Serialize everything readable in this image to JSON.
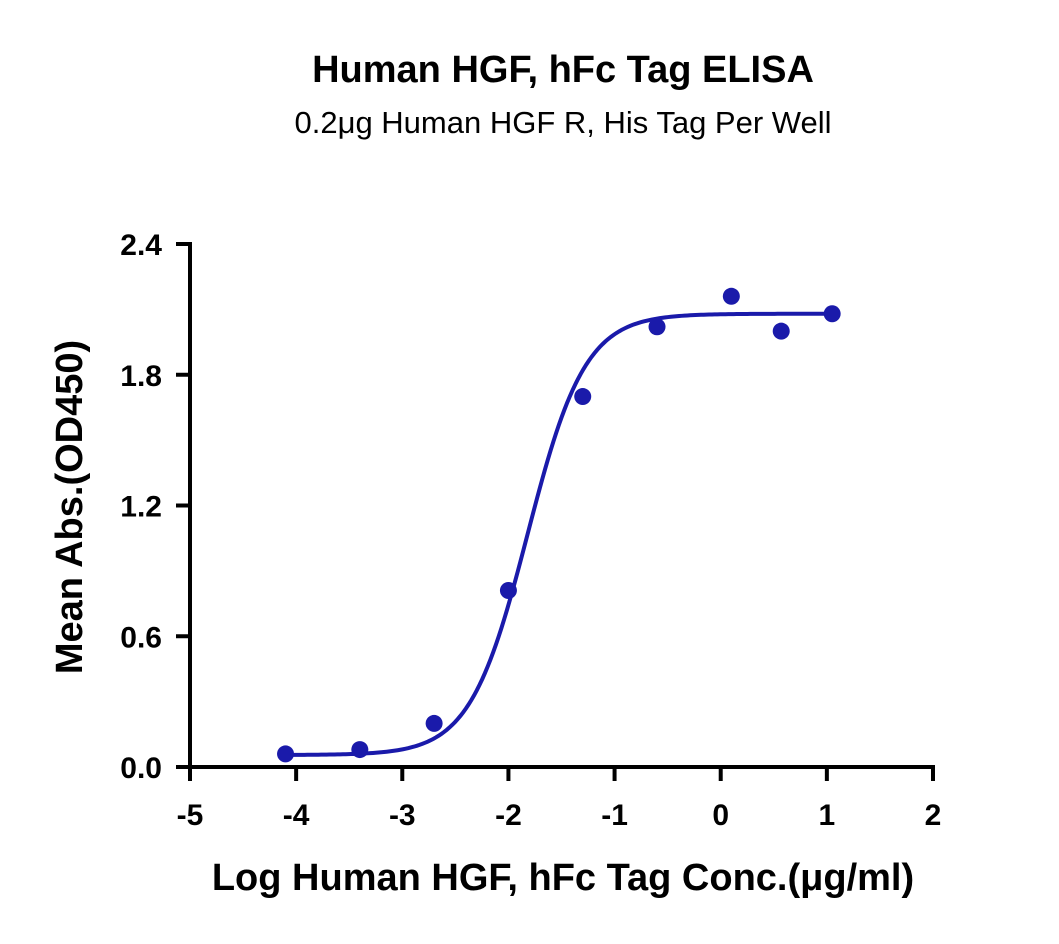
{
  "chart_data": {
    "type": "scatter",
    "title": "Human HGF, hFc Tag ELISA",
    "subtitle": "0.2μg Human HGF R, His Tag Per Well",
    "xlabel": "Log Human HGF, hFc Tag Conc.(μg/ml)",
    "ylabel": "Mean Abs.(OD450)",
    "xlim": [
      -5,
      2
    ],
    "ylim": [
      0,
      2.4
    ],
    "x_ticks": [
      "-5",
      "-4",
      "-3",
      "-2",
      "-1",
      "0",
      "1",
      "2"
    ],
    "y_ticks": [
      "0.0",
      "0.6",
      "1.2",
      "1.8",
      "2.4"
    ],
    "x_tick_values": [
      -5,
      -4,
      -3,
      -2,
      -1,
      0,
      1,
      2
    ],
    "y_tick_values": [
      0,
      0.6,
      1.2,
      1.8,
      2.4
    ],
    "grid": false,
    "legend": "none",
    "color": "#1a1aaa",
    "series": [
      {
        "points": [
          {
            "x": -4.1,
            "y": 0.06
          },
          {
            "x": -3.4,
            "y": 0.08
          },
          {
            "x": -2.7,
            "y": 0.2
          },
          {
            "x": -2.0,
            "y": 0.81
          },
          {
            "x": -1.3,
            "y": 1.7
          },
          {
            "x": -0.6,
            "y": 2.02
          },
          {
            "x": 0.1,
            "y": 2.16
          },
          {
            "x": 0.57,
            "y": 2.0
          },
          {
            "x": 1.05,
            "y": 2.08
          }
        ]
      }
    ],
    "fit": {
      "type": "4PL",
      "bottom": 0.055,
      "top": 2.08,
      "logEC50": -1.82,
      "hill": 1.6,
      "x_range": [
        -4.1,
        1.05
      ]
    }
  }
}
